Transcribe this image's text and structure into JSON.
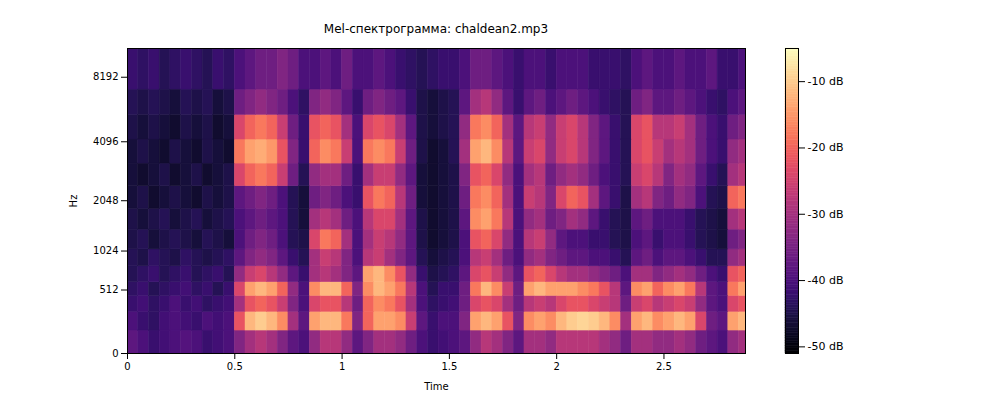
{
  "chart_data": {
    "type": "heatmap",
    "title": "Mel-спектрограмма: chaldean2.mp3",
    "x_label": "Time",
    "y_label": "Hz",
    "xlim": [
      0,
      2.88
    ],
    "xticks": [
      0,
      0.5,
      1,
      1.5,
      2,
      2.5
    ],
    "ylim": [
      0,
      11025
    ],
    "yticks": [
      0,
      512,
      1024,
      2048,
      4096,
      8192
    ],
    "log": "y",
    "color": "magma",
    "time_bins": [
      0,
      0.05,
      0.1,
      0.15,
      0.2,
      0.25,
      0.3,
      0.35,
      0.4,
      0.45,
      0.5,
      0.55,
      0.6,
      0.65,
      0.7,
      0.75,
      0.8,
      0.85,
      0.9,
      0.95,
      1,
      1.05,
      1.1,
      1.15,
      1.2,
      1.25,
      1.3,
      1.35,
      1.4,
      1.45,
      1.5,
      1.55,
      1.6,
      1.65,
      1.7,
      1.75,
      1.8,
      1.85,
      1.9,
      1.95,
      2,
      2.05,
      2.1,
      2.15,
      2.2,
      2.25,
      2.3,
      2.35,
      2.4,
      2.45,
      2.5,
      2.55,
      2.6,
      2.65,
      2.7,
      2.75,
      2.8,
      2.85,
      2.9
    ],
    "freq_bins": [
      0,
      150,
      300,
      450,
      600,
      800,
      1050,
      1400,
      1850,
      2450,
      3200,
      4200,
      5500,
      7200,
      11025
    ],
    "cells": [
      [
        -38,
        -40,
        -42,
        -41,
        -40,
        -39,
        -40,
        -42,
        -41,
        -40,
        -34,
        -30,
        -28,
        -30,
        -34,
        -38,
        -40,
        -32,
        -28,
        -28,
        -32,
        -38,
        -34,
        -30,
        -30,
        -32,
        -36,
        -40,
        -42,
        -41,
        -40,
        -38,
        -32,
        -28,
        -30,
        -34,
        -38,
        -30,
        -30,
        -32,
        -28,
        -28,
        -28,
        -28,
        -30,
        -32,
        -36,
        -30,
        -30,
        -32,
        -32,
        -30,
        -32,
        -36,
        -38,
        -40,
        -32,
        -30
      ],
      [
        -40,
        -42,
        -43,
        -41,
        -40,
        -41,
        -42,
        -40,
        -41,
        -40,
        -22,
        -12,
        -10,
        -12,
        -16,
        -30,
        -38,
        -14,
        -12,
        -12,
        -18,
        -34,
        -20,
        -14,
        -14,
        -16,
        -26,
        -38,
        -42,
        -40,
        -40,
        -34,
        -14,
        -12,
        -14,
        -22,
        -34,
        -16,
        -14,
        -16,
        -12,
        -10,
        -9,
        -10,
        -12,
        -16,
        -30,
        -14,
        -12,
        -16,
        -14,
        -12,
        -14,
        -24,
        -36,
        -38,
        -14,
        -12
      ],
      [
        -42,
        -41,
        -43,
        -42,
        -40,
        -42,
        -41,
        -43,
        -42,
        -41,
        -30,
        -22,
        -20,
        -22,
        -26,
        -34,
        -40,
        -24,
        -22,
        -22,
        -28,
        -36,
        -20,
        -16,
        -18,
        -22,
        -30,
        -40,
        -43,
        -42,
        -41,
        -36,
        -24,
        -22,
        -24,
        -30,
        -36,
        -28,
        -26,
        -28,
        -24,
        -22,
        -22,
        -24,
        -26,
        -28,
        -36,
        -26,
        -24,
        -28,
        -26,
        -24,
        -26,
        -32,
        -38,
        -40,
        -24,
        -22
      ],
      [
        -43,
        -42,
        -44,
        -43,
        -42,
        -41,
        -43,
        -42,
        -44,
        -42,
        -24,
        -14,
        -12,
        -14,
        -20,
        -32,
        -40,
        -16,
        -12,
        -12,
        -20,
        -34,
        -16,
        -12,
        -14,
        -18,
        -28,
        -40,
        -44,
        -42,
        -42,
        -36,
        -18,
        -12,
        -16,
        -26,
        -36,
        -14,
        -12,
        -14,
        -14,
        -14,
        -16,
        -18,
        -22,
        -28,
        -38,
        -16,
        -14,
        -20,
        -16,
        -14,
        -18,
        -28,
        -38,
        -40,
        -18,
        -14
      ],
      [
        -44,
        -43,
        -42,
        -44,
        -43,
        -42,
        -44,
        -43,
        -42,
        -44,
        -32,
        -26,
        -24,
        -28,
        -32,
        -38,
        -42,
        -30,
        -28,
        -30,
        -34,
        -38,
        -14,
        -12,
        -16,
        -22,
        -32,
        -42,
        -45,
        -44,
        -43,
        -38,
        -24,
        -22,
        -26,
        -32,
        -38,
        -22,
        -20,
        -24,
        -28,
        -30,
        -30,
        -32,
        -34,
        -36,
        -40,
        -30,
        -30,
        -34,
        -32,
        -30,
        -32,
        -36,
        -40,
        -42,
        -22,
        -20
      ],
      [
        -44,
        -45,
        -43,
        -44,
        -45,
        -43,
        -44,
        -45,
        -44,
        -43,
        -38,
        -34,
        -32,
        -34,
        -38,
        -42,
        -44,
        -30,
        -26,
        -28,
        -34,
        -40,
        -28,
        -26,
        -30,
        -34,
        -38,
        -44,
        -46,
        -45,
        -44,
        -40,
        -28,
        -26,
        -30,
        -36,
        -40,
        -32,
        -30,
        -34,
        -36,
        -38,
        -38,
        -40,
        -40,
        -42,
        -44,
        -38,
        -36,
        -40,
        -38,
        -38,
        -40,
        -42,
        -44,
        -44,
        -32,
        -30
      ],
      [
        -45,
        -44,
        -46,
        -45,
        -44,
        -45,
        -46,
        -44,
        -45,
        -46,
        -40,
        -36,
        -34,
        -36,
        -40,
        -44,
        -45,
        -24,
        -18,
        -20,
        -30,
        -40,
        -30,
        -26,
        -28,
        -32,
        -38,
        -45,
        -47,
        -46,
        -45,
        -40,
        -22,
        -20,
        -24,
        -32,
        -40,
        -28,
        -26,
        -32,
        -38,
        -40,
        -40,
        -42,
        -42,
        -44,
        -45,
        -40,
        -38,
        -42,
        -40,
        -40,
        -42,
        -44,
        -45,
        -46,
        -36,
        -34
      ],
      [
        -45,
        -46,
        -45,
        -44,
        -46,
        -45,
        -44,
        -46,
        -45,
        -44,
        -40,
        -38,
        -36,
        -38,
        -40,
        -44,
        -46,
        -30,
        -28,
        -30,
        -36,
        -40,
        -28,
        -24,
        -24,
        -30,
        -38,
        -45,
        -47,
        -46,
        -45,
        -38,
        -16,
        -14,
        -18,
        -28,
        -40,
        -32,
        -30,
        -36,
        -34,
        -30,
        -32,
        -38,
        -42,
        -44,
        -45,
        -38,
        -36,
        -40,
        -40,
        -40,
        -42,
        -44,
        -45,
        -46,
        -30,
        -28
      ],
      [
        -46,
        -45,
        -47,
        -46,
        -45,
        -46,
        -47,
        -45,
        -46,
        -45,
        -38,
        -36,
        -34,
        -36,
        -40,
        -44,
        -46,
        -36,
        -34,
        -36,
        -40,
        -42,
        -22,
        -18,
        -20,
        -28,
        -36,
        -46,
        -47,
        -46,
        -45,
        -36,
        -18,
        -16,
        -20,
        -30,
        -40,
        -26,
        -28,
        -34,
        -24,
        -20,
        -22,
        -30,
        -38,
        -42,
        -45,
        -30,
        -28,
        -34,
        -36,
        -32,
        -34,
        -40,
        -44,
        -45,
        -20,
        -18
      ],
      [
        -46,
        -47,
        -46,
        -45,
        -47,
        -46,
        -45,
        -47,
        -46,
        -45,
        -24,
        -20,
        -18,
        -20,
        -26,
        -36,
        -44,
        -32,
        -30,
        -30,
        -36,
        -42,
        -30,
        -26,
        -26,
        -32,
        -38,
        -46,
        -47,
        -46,
        -45,
        -34,
        -22,
        -20,
        -24,
        -32,
        -40,
        -30,
        -28,
        -36,
        -32,
        -30,
        -32,
        -36,
        -40,
        -42,
        -44,
        -26,
        -24,
        -28,
        -34,
        -30,
        -32,
        -38,
        -42,
        -44,
        -30,
        -28
      ],
      [
        -46,
        -45,
        -46,
        -47,
        -45,
        -46,
        -47,
        -45,
        -46,
        -47,
        -18,
        -14,
        -13,
        -15,
        -22,
        -34,
        -42,
        -20,
        -16,
        -18,
        -26,
        -40,
        -18,
        -16,
        -18,
        -26,
        -36,
        -45,
        -47,
        -46,
        -44,
        -30,
        -14,
        -12,
        -16,
        -28,
        -38,
        -26,
        -24,
        -32,
        -26,
        -24,
        -28,
        -34,
        -38,
        -42,
        -44,
        -24,
        -22,
        -26,
        -30,
        -28,
        -30,
        -36,
        -40,
        -42,
        -32,
        -30
      ],
      [
        -45,
        -46,
        -45,
        -46,
        -47,
        -45,
        -46,
        -45,
        -47,
        -46,
        -24,
        -20,
        -18,
        -20,
        -26,
        -36,
        -42,
        -22,
        -20,
        -22,
        -30,
        -40,
        -24,
        -22,
        -24,
        -30,
        -38,
        -45,
        -46,
        -45,
        -44,
        -32,
        -18,
        -16,
        -20,
        -30,
        -38,
        -28,
        -26,
        -32,
        -26,
        -24,
        -28,
        -34,
        -38,
        -42,
        -44,
        -24,
        -22,
        -28,
        -28,
        -26,
        -30,
        -36,
        -40,
        -42,
        -36,
        -34
      ],
      [
        -44,
        -45,
        -44,
        -45,
        -46,
        -44,
        -45,
        -44,
        -46,
        -45,
        -36,
        -34,
        -32,
        -34,
        -36,
        -40,
        -43,
        -34,
        -32,
        -34,
        -38,
        -42,
        -36,
        -34,
        -36,
        -38,
        -42,
        -45,
        -46,
        -45,
        -44,
        -38,
        -30,
        -28,
        -32,
        -38,
        -42,
        -38,
        -36,
        -40,
        -38,
        -36,
        -38,
        -40,
        -42,
        -43,
        -44,
        -36,
        -34,
        -38,
        -38,
        -36,
        -38,
        -40,
        -42,
        -43,
        -40,
        -38
      ],
      [
        -42,
        -43,
        -42,
        -44,
        -43,
        -42,
        -43,
        -44,
        -42,
        -43,
        -40,
        -38,
        -36,
        -36,
        -34,
        -36,
        -40,
        -40,
        -38,
        -40,
        -36,
        -40,
        -40,
        -38,
        -40,
        -42,
        -43,
        -44,
        -43,
        -42,
        -42,
        -40,
        -36,
        -36,
        -38,
        -40,
        -42,
        -40,
        -40,
        -42,
        -40,
        -40,
        -40,
        -42,
        -42,
        -42,
        -43,
        -40,
        -38,
        -40,
        -40,
        -38,
        -40,
        -40,
        -38,
        -42,
        -42,
        -40
      ]
    ],
    "colorbar": {
      "range": [
        -51,
        -5
      ],
      "ticks": [
        {
          "value": -10,
          "label": "-10 dB"
        },
        {
          "value": -20,
          "label": "-20 dB"
        },
        {
          "value": -30,
          "label": "-30 dB"
        },
        {
          "value": -40,
          "label": "-40 dB"
        },
        {
          "value": -50,
          "label": "-50 dB"
        }
      ]
    }
  }
}
